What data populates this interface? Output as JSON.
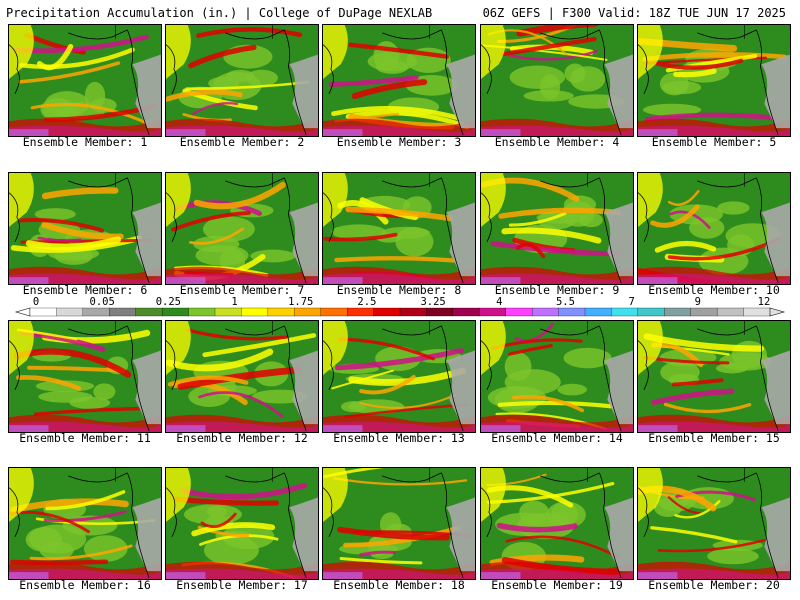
{
  "header": {
    "left_title": "Precipitation Accumulation (in.) | College of DuPage NEXLAB",
    "right_title": "06Z GEFS | F300 Valid: 18Z TUE JUN 17 2025"
  },
  "members": [
    "Ensemble Member: 1",
    "Ensemble Member: 2",
    "Ensemble Member: 3",
    "Ensemble Member: 4",
    "Ensemble Member: 5",
    "Ensemble Member: 6",
    "Ensemble Member: 7",
    "Ensemble Member: 8",
    "Ensemble Member: 9",
    "Ensemble Member: 10",
    "Ensemble Member: 11",
    "Ensemble Member: 12",
    "Ensemble Member: 13",
    "Ensemble Member: 14",
    "Ensemble Member: 15",
    "Ensemble Member: 16",
    "Ensemble Member: 17",
    "Ensemble Member: 18",
    "Ensemble Member: 19",
    "Ensemble Member: 20"
  ],
  "colorbar": {
    "tick_labels": [
      "0",
      "0.05",
      "0.25",
      "1",
      "1.75",
      "2.5",
      "3.25",
      "4",
      "5.5",
      "7",
      "9",
      "12"
    ],
    "colors": [
      "#ffffff",
      "#d8d8d8",
      "#a8a8a8",
      "#808080",
      "#4e8c2a",
      "#2e8b1e",
      "#7cc52a",
      "#c8e020",
      "#ffff00",
      "#ffd000",
      "#ffa500",
      "#ff7000",
      "#ff3000",
      "#e00000",
      "#b00018",
      "#800020",
      "#a00050",
      "#d0108a",
      "#ff40ff",
      "#c070ff",
      "#8090ff",
      "#40b0ff",
      "#40e0f0",
      "#40c8c8",
      "#80a0a0",
      "#a0a0a0",
      "#c0c0c0",
      "#e0e0e0"
    ]
  },
  "palette": {
    "ocean_green": "#2e8b1e",
    "light_green": "#7cc52a",
    "yellow": "#ffff00",
    "orange": "#ffa500",
    "red": "#e00000",
    "magenta": "#d0108a",
    "purple": "#c070ff",
    "land_gray": "#a8a8a8",
    "coast_line": "#000000"
  }
}
